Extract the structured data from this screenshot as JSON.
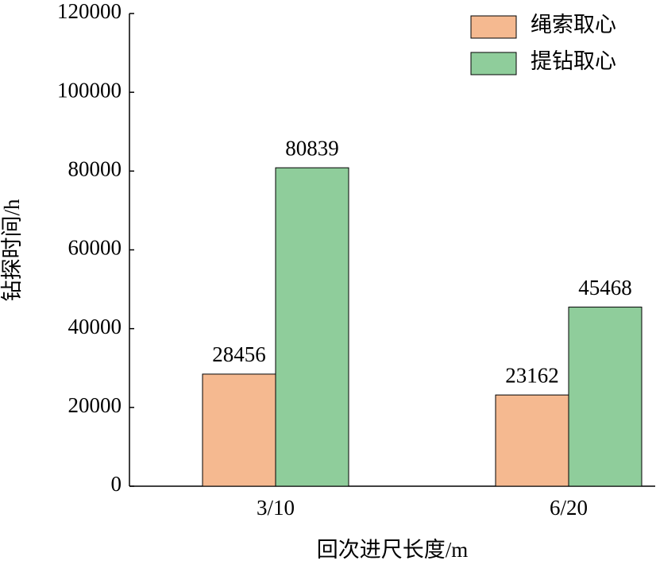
{
  "chart_data": {
    "type": "bar",
    "x_label": "回次进尺长度/m",
    "y_label": "钻探时间/h",
    "categories": [
      "3/10",
      "6/20"
    ],
    "series": [
      {
        "name": "绳索取心",
        "color": "#f5b990",
        "values": [
          28456,
          23162
        ]
      },
      {
        "name": "提钻取心",
        "color": "#8fcd9b",
        "values": [
          80839,
          45468
        ]
      }
    ],
    "ylim": [
      0,
      120000
    ],
    "yticks": [
      0,
      20000,
      40000,
      60000,
      80000,
      100000,
      120000
    ],
    "legend": "upper right"
  }
}
